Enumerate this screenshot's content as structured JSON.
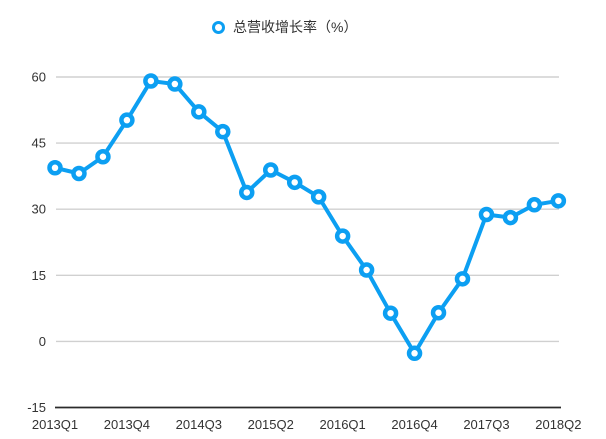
{
  "chart_data": {
    "type": "line",
    "legend": "总营收增长率（%）",
    "title": "",
    "xlabel": "",
    "ylabel": "",
    "x": [
      "2013Q1",
      "2013Q2",
      "2013Q3",
      "2013Q4",
      "2014Q1",
      "2014Q2",
      "2014Q3",
      "2014Q4",
      "2015Q1",
      "2015Q2",
      "2015Q3",
      "2015Q4",
      "2016Q1",
      "2016Q2",
      "2016Q3",
      "2016Q4",
      "2017Q1",
      "2017Q2",
      "2017Q3",
      "2017Q4",
      "2018Q1",
      "2018Q2"
    ],
    "values": [
      39.4,
      38.1,
      41.9,
      50.2,
      59.1,
      58.4,
      52.1,
      47.6,
      33.8,
      38.9,
      36.1,
      32.8,
      23.9,
      16.2,
      6.4,
      -2.7,
      6.5,
      14.2,
      28.8,
      28.1,
      31.0,
      31.9
    ],
    "x_tick_labels": [
      "2013Q1",
      "2013Q4",
      "2014Q3",
      "2015Q2",
      "2016Q1",
      "2016Q4",
      "2017Q3",
      "2018Q2"
    ],
    "x_tick_indices": [
      0,
      3,
      6,
      9,
      12,
      15,
      18,
      21
    ],
    "y_ticks": [
      60,
      45,
      30,
      15,
      0,
      -15
    ],
    "ylim": [
      -15,
      60
    ],
    "grid": true,
    "legend_position": "top-center",
    "colors": {
      "series": "#0c9ff2",
      "gridline": "#d0d0d0",
      "axis_line": "#2b2b2b",
      "tick_text": "#333333",
      "marker_fill": "#ffffff",
      "background": "#ffffff"
    }
  }
}
